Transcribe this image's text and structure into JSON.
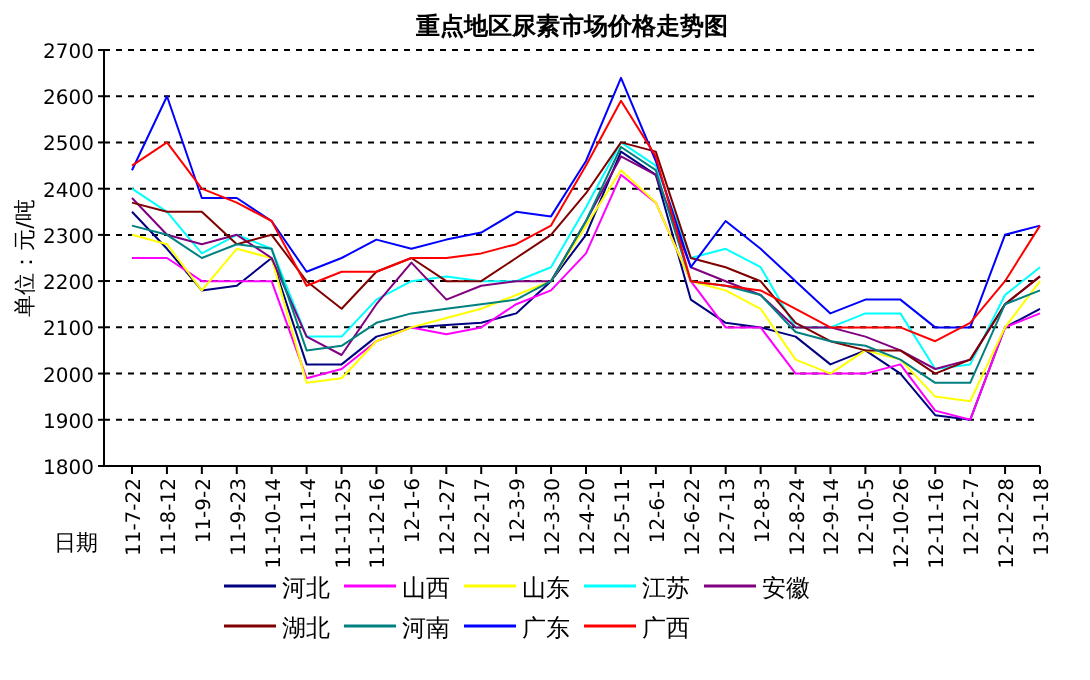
{
  "chart_data": {
    "type": "line",
    "title": "重点地区尿素市场价格走势图",
    "ylabel": "单位：元/吨",
    "xlabel": "日期",
    "categories": [
      "11-7-22",
      "11-8-12",
      "11-9-2",
      "11-9-23",
      "11-10-14",
      "11-11-4",
      "11-11-25",
      "11-12-16",
      "12-1-6",
      "12-1-27",
      "12-2-17",
      "12-3-9",
      "12-3-30",
      "12-4-20",
      "12-5-11",
      "12-6-1",
      "12-6-22",
      "12-7-13",
      "12-8-3",
      "12-8-24",
      "12-9-14",
      "12-10-5",
      "12-10-26",
      "12-11-16",
      "12-12-7",
      "12-12-28",
      "13-1-18"
    ],
    "ylim": [
      1800,
      2700
    ],
    "yticks": [
      1800,
      1900,
      2000,
      2100,
      2200,
      2300,
      2400,
      2500,
      2600,
      2700
    ],
    "grid": "y",
    "legend": "bottom",
    "series": [
      {
        "name": "河北",
        "color": "#000080",
        "values": [
          2350,
          2270,
          2180,
          2190,
          2250,
          2020,
          2020,
          2080,
          2100,
          2105,
          2110,
          2130,
          2200,
          2300,
          2480,
          2430,
          2160,
          2110,
          2100,
          2080,
          2020,
          2050,
          2000,
          1910,
          1900,
          2100,
          2140
        ]
      },
      {
        "name": "山西",
        "color": "#ff00ff",
        "values": [
          2250,
          2250,
          2200,
          2200,
          2200,
          1990,
          2010,
          2070,
          2100,
          2085,
          2100,
          2150,
          2180,
          2260,
          2430,
          2370,
          2200,
          2100,
          2100,
          2000,
          2000,
          2000,
          2020,
          1920,
          1900,
          2100,
          2130
        ]
      },
      {
        "name": "山东",
        "color": "#ffff00",
        "values": [
          2300,
          2280,
          2180,
          2270,
          2250,
          1980,
          1990,
          2070,
          2100,
          2120,
          2140,
          2170,
          2200,
          2320,
          2440,
          2370,
          2200,
          2180,
          2140,
          2030,
          2000,
          2050,
          2030,
          1950,
          1940,
          2100,
          2200
        ]
      },
      {
        "name": "江苏",
        "color": "#00ffff",
        "values": [
          2400,
          2350,
          2260,
          2300,
          2270,
          2080,
          2080,
          2160,
          2200,
          2210,
          2200,
          2200,
          2230,
          2360,
          2500,
          2450,
          2250,
          2270,
          2230,
          2100,
          2100,
          2130,
          2130,
          2010,
          2020,
          2170,
          2230
        ]
      },
      {
        "name": "安徽",
        "color": "#800080",
        "values": [
          2380,
          2300,
          2280,
          2300,
          2250,
          2080,
          2040,
          2150,
          2240,
          2160,
          2190,
          2200,
          2200,
          2330,
          2470,
          2430,
          2230,
          2200,
          2170,
          2100,
          2100,
          2080,
          2050,
          2010,
          2030,
          2150,
          2210
        ]
      },
      {
        "name": "湖北",
        "color": "#800000",
        "values": [
          2370,
          2350,
          2350,
          2280,
          2300,
          2200,
          2140,
          2220,
          2250,
          2200,
          2200,
          2250,
          2300,
          2390,
          2500,
          2480,
          2250,
          2230,
          2200,
          2110,
          2070,
          2050,
          2050,
          2000,
          2030,
          2150,
          2210
        ]
      },
      {
        "name": "河南",
        "color": "#008080",
        "values": [
          2320,
          2300,
          2250,
          2280,
          2270,
          2050,
          2060,
          2110,
          2130,
          2140,
          2150,
          2160,
          2200,
          2330,
          2490,
          2440,
          2200,
          2190,
          2170,
          2090,
          2070,
          2060,
          2030,
          1980,
          1980,
          2150,
          2180
        ]
      },
      {
        "name": "广东",
        "color": "#0000ff",
        "values": [
          2440,
          2600,
          2380,
          2380,
          2330,
          2220,
          2250,
          2290,
          2270,
          2290,
          2305,
          2350,
          2340,
          2460,
          2640,
          2460,
          2230,
          2330,
          2270,
          2200,
          2130,
          2160,
          2160,
          2100,
          2100,
          2300,
          2320
        ]
      },
      {
        "name": "广西",
        "color": "#ff0000",
        "values": [
          2450,
          2500,
          2400,
          2370,
          2330,
          2190,
          2220,
          2220,
          2250,
          2250,
          2260,
          2280,
          2320,
          2450,
          2590,
          2470,
          2200,
          2190,
          2180,
          2140,
          2100,
          2100,
          2100,
          2070,
          2110,
          2200,
          2320
        ]
      }
    ]
  }
}
